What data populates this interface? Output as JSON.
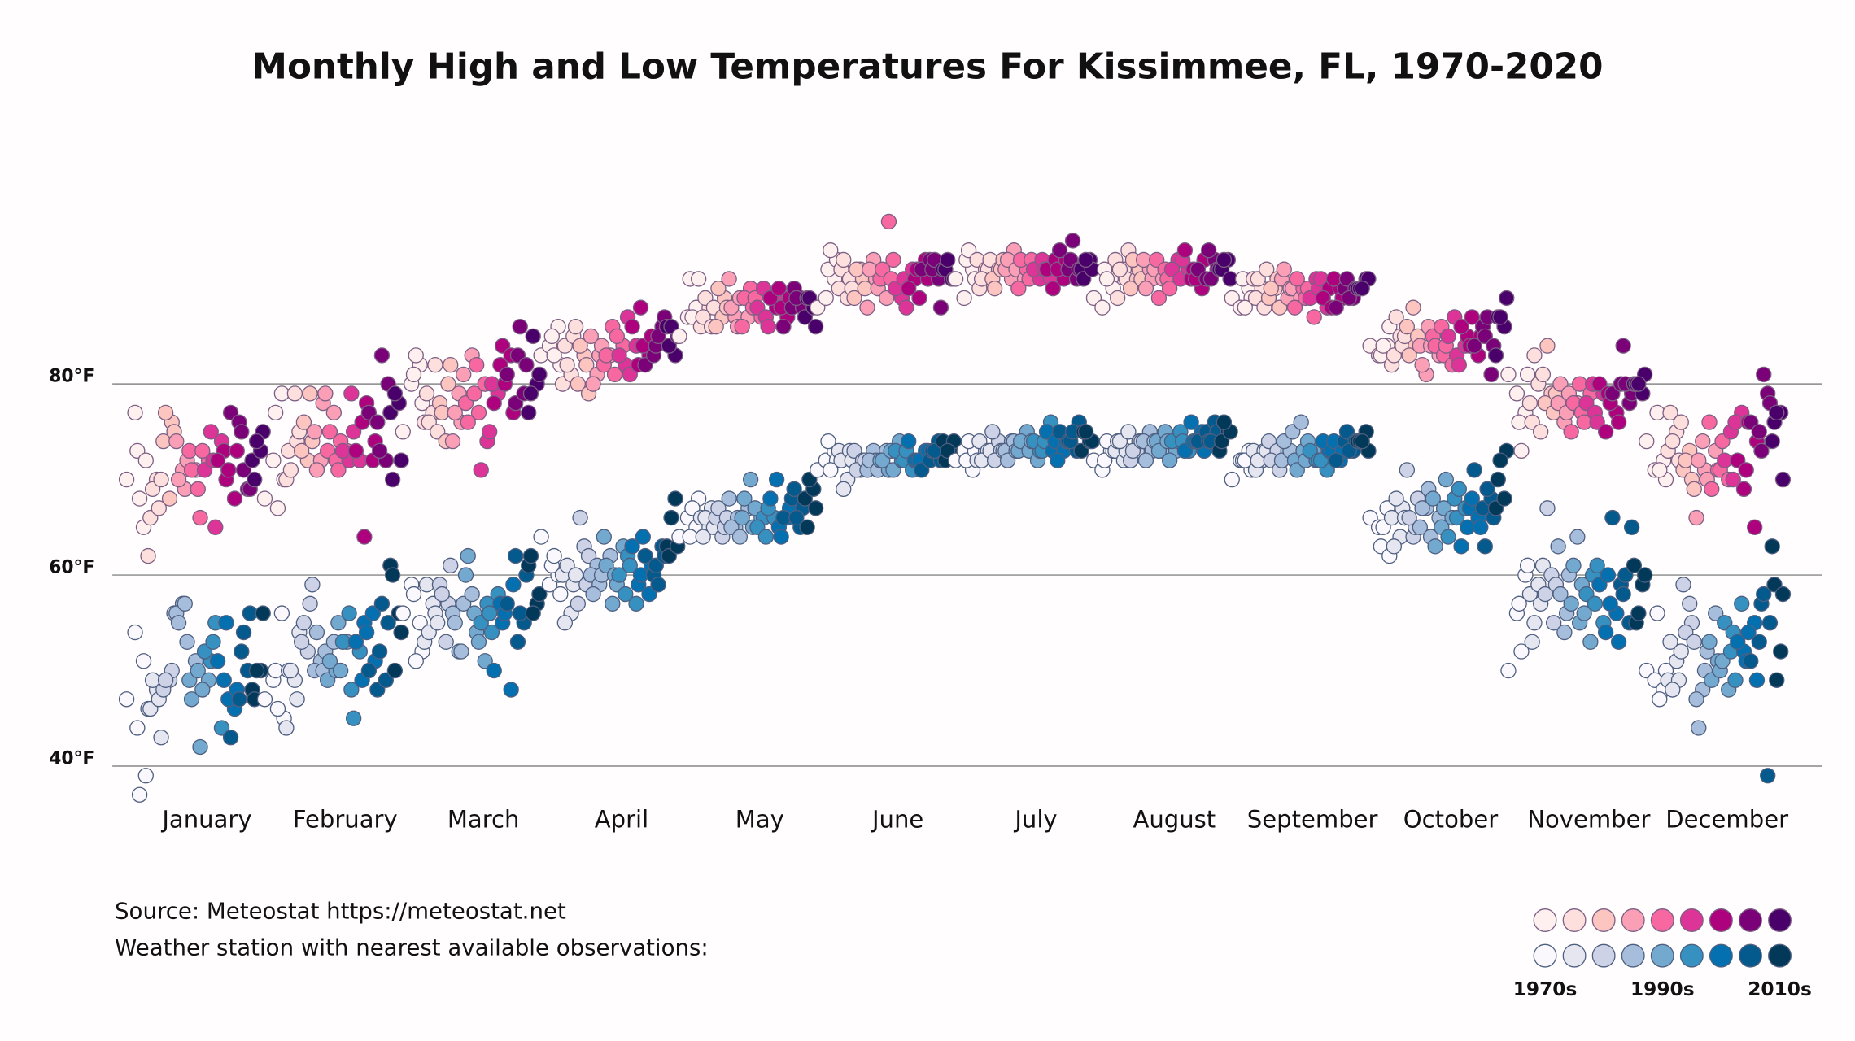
{
  "chart_data": {
    "type": "scatter",
    "title": "Monthly High and Low Temperatures For Kissimmee, FL, 1970-2020",
    "notes": [
      "Source: Meteostat https://meteostat.net",
      "Weather station with nearest available observations:"
    ],
    "categories": [
      "January",
      "February",
      "March",
      "April",
      "May",
      "June",
      "July",
      "August",
      "September",
      "October",
      "November",
      "December"
    ],
    "ylim": [
      36,
      100
    ],
    "yticks": [
      {
        "value": 40,
        "label": "40°F"
      },
      {
        "value": 60,
        "label": "60°F"
      },
      {
        "value": 80,
        "label": "80°F"
      }
    ],
    "grid": true,
    "legend": {
      "labels": [
        "1970s",
        "1990s",
        "2010s"
      ],
      "label_positions": [
        0,
        4,
        8
      ],
      "high_colors": [
        "#fff0f0",
        "#fde0dd",
        "#fcc5c0",
        "#fa9fb5",
        "#f768a1",
        "#dd3497",
        "#ae017e",
        "#7a0177",
        "#49006a"
      ],
      "low_colors": [
        "#fbf8fd",
        "#e6e6f1",
        "#cdd2e6",
        "#a6bddb",
        "#74a9cf",
        "#3690c0",
        "#0570b0",
        "#045a8d",
        "#023858"
      ]
    },
    "high": [
      [
        70,
        77,
        65,
        73,
        72,
        68,
        62,
        70,
        66,
        67,
        69,
        70,
        68,
        74,
        76,
        77,
        75,
        71,
        74,
        69,
        70,
        72,
        71,
        73,
        69,
        71,
        66,
        72,
        73,
        75,
        71,
        72,
        74,
        65,
        73,
        72,
        70,
        68,
        71,
        73,
        77,
        76,
        69,
        75,
        69,
        71,
        72,
        73,
        70,
        75,
        74
      ],
      [
        68,
        72,
        79,
        77,
        70,
        67,
        70,
        79,
        73,
        74,
        71,
        75,
        72,
        73,
        79,
        76,
        74,
        72,
        75,
        78,
        71,
        79,
        77,
        73,
        72,
        75,
        71,
        73,
        74,
        72,
        73,
        79,
        72,
        75,
        76,
        73,
        64,
        72,
        78,
        74,
        77,
        76,
        72,
        73,
        80,
        83,
        77,
        78,
        70,
        72,
        79
      ],
      [
        75,
        80,
        82,
        81,
        78,
        83,
        76,
        77,
        79,
        82,
        76,
        75,
        74,
        78,
        80,
        77,
        82,
        79,
        74,
        76,
        77,
        81,
        83,
        78,
        79,
        76,
        82,
        80,
        77,
        74,
        71,
        75,
        79,
        80,
        82,
        78,
        84,
        83,
        80,
        77,
        81,
        78,
        79,
        83,
        82,
        86,
        77,
        80,
        79,
        81,
        85
      ],
      [
        83,
        84,
        86,
        85,
        82,
        83,
        80,
        81,
        84,
        85,
        82,
        86,
        83,
        80,
        82,
        84,
        79,
        81,
        85,
        83,
        80,
        84,
        83,
        82,
        86,
        83,
        81,
        84,
        85,
        82,
        83,
        87,
        84,
        81,
        82,
        86,
        88,
        83,
        84,
        85,
        82,
        83,
        86,
        84,
        87,
        85,
        86,
        83,
        84,
        85,
        86
      ],
      [
        85,
        87,
        88,
        91,
        91,
        87,
        86,
        88,
        87,
        86,
        89,
        88,
        87,
        86,
        89,
        90,
        88,
        87,
        91,
        86,
        88,
        89,
        87,
        86,
        90,
        89,
        88,
        87,
        89,
        90,
        88,
        87,
        89,
        86,
        88,
        89,
        90,
        87,
        88,
        89,
        86,
        88,
        89,
        90,
        88,
        89,
        87,
        88,
        89,
        86,
        89
      ],
      [
        88,
        89,
        91,
        92,
        93,
        94,
        90,
        89,
        92,
        91,
        93,
        90,
        92,
        89,
        91,
        92,
        90,
        93,
        88,
        91,
        92,
        90,
        89,
        91,
        97,
        92,
        91,
        90,
        93,
        89,
        90,
        91,
        92,
        88,
        91,
        90,
        92,
        93,
        89,
        91,
        92,
        93,
        91,
        92,
        88,
        93,
        92,
        91,
        92,
        91,
        93
      ],
      [
        91,
        89,
        92,
        93,
        91,
        94,
        93,
        92,
        90,
        92,
        91,
        93,
        92,
        91,
        92,
        90,
        93,
        91,
        92,
        94,
        93,
        92,
        91,
        90,
        92,
        93,
        91,
        92,
        93,
        91,
        92,
        93,
        91,
        92,
        90,
        92,
        93,
        91,
        92,
        93,
        94,
        92,
        91,
        93,
        92,
        95,
        92,
        93,
        91,
        92,
        93
      ],
      [
        89,
        88,
        91,
        92,
        90,
        91,
        93,
        92,
        89,
        91,
        92,
        94,
        91,
        90,
        92,
        93,
        91,
        92,
        93,
        91,
        90,
        92,
        91,
        93,
        92,
        89,
        91,
        92,
        90,
        93,
        92,
        91,
        92,
        93,
        91,
        94,
        92,
        90,
        91,
        93,
        92,
        91,
        93,
        94,
        92,
        91,
        92,
        93,
        92,
        91,
        93
      ],
      [
        89,
        88,
        90,
        91,
        89,
        88,
        91,
        90,
        89,
        88,
        91,
        92,
        90,
        89,
        91,
        90,
        88,
        89,
        91,
        90,
        92,
        90,
        89,
        88,
        90,
        91,
        89,
        87,
        90,
        91,
        89,
        90,
        88,
        91,
        90,
        89,
        88,
        90,
        91,
        89,
        88,
        90,
        89,
        91,
        90,
        89,
        90,
        91,
        90,
        91,
        90
      ],
      [
        84,
        83,
        84,
        83,
        86,
        84,
        82,
        85,
        83,
        84,
        87,
        85,
        88,
        86,
        84,
        83,
        85,
        81,
        84,
        86,
        82,
        84,
        83,
        85,
        86,
        84,
        83,
        82,
        84,
        87,
        85,
        83,
        84,
        82,
        85,
        86,
        84,
        83,
        87,
        85,
        84,
        86,
        81,
        85,
        84,
        87,
        83,
        86,
        87,
        89,
        87
      ],
      [
        81,
        79,
        77,
        76,
        81,
        73,
        78,
        80,
        76,
        75,
        83,
        81,
        79,
        78,
        77,
        84,
        79,
        76,
        78,
        77,
        80,
        79,
        78,
        75,
        80,
        78,
        77,
        79,
        76,
        80,
        78,
        77,
        79,
        76,
        75,
        80,
        79,
        77,
        78,
        76,
        79,
        80,
        78,
        84,
        79,
        80,
        80,
        79,
        80,
        81,
        80
      ],
      [
        74,
        71,
        72,
        77,
        70,
        71,
        73,
        75,
        77,
        72,
        74,
        76,
        73,
        71,
        70,
        72,
        69,
        74,
        66,
        71,
        72,
        70,
        73,
        76,
        71,
        69,
        71,
        70,
        74,
        75,
        72,
        70,
        77,
        76,
        69,
        72,
        71,
        65,
        76,
        74,
        76,
        75,
        79,
        73,
        78,
        81,
        74,
        77,
        76,
        70,
        77
      ]
    ],
    "low": [
      [
        47,
        54,
        51,
        44,
        39,
        37,
        46,
        48,
        46,
        47,
        49,
        43,
        49,
        48,
        50,
        49,
        56,
        57,
        56,
        57,
        55,
        53,
        51,
        49,
        50,
        47,
        42,
        49,
        48,
        51,
        52,
        53,
        44,
        55,
        49,
        51,
        55,
        46,
        47,
        48,
        43,
        47,
        50,
        52,
        56,
        54,
        48,
        50,
        47,
        56,
        50
      ],
      [
        47,
        49,
        56,
        50,
        45,
        46,
        44,
        49,
        50,
        47,
        50,
        54,
        52,
        53,
        57,
        55,
        59,
        51,
        50,
        50,
        54,
        52,
        53,
        49,
        50,
        51,
        55,
        53,
        50,
        56,
        53,
        48,
        52,
        45,
        49,
        53,
        55,
        56,
        54,
        51,
        50,
        48,
        49,
        52,
        55,
        57,
        61,
        56,
        60,
        54,
        50
      ],
      [
        56,
        59,
        55,
        58,
        52,
        51,
        53,
        57,
        59,
        56,
        54,
        55,
        53,
        59,
        57,
        58,
        61,
        52,
        56,
        52,
        55,
        57,
        58,
        60,
        56,
        62,
        54,
        51,
        53,
        57,
        55,
        56,
        58,
        54,
        57,
        50,
        55,
        48,
        56,
        59,
        57,
        62,
        55,
        53,
        60,
        56,
        61,
        57,
        62,
        58,
        56
      ],
      [
        64,
        59,
        60,
        61,
        58,
        62,
        60,
        56,
        55,
        59,
        61,
        60,
        63,
        57,
        59,
        66,
        62,
        61,
        60,
        59,
        58,
        60,
        62,
        64,
        57,
        61,
        60,
        63,
        59,
        58,
        60,
        62,
        57,
        61,
        59,
        63,
        60,
        58,
        64,
        61,
        62,
        60,
        63,
        61,
        62,
        59,
        63,
        68,
        62,
        63,
        66
      ],
      [
        64,
        66,
        65,
        64,
        68,
        67,
        66,
        65,
        64,
        67,
        66,
        65,
        64,
        66,
        65,
        67,
        66,
        65,
        68,
        66,
        65,
        64,
        67,
        66,
        70,
        68,
        65,
        66,
        67,
        66,
        65,
        64,
        66,
        67,
        70,
        68,
        65,
        66,
        64,
        67,
        66,
        68,
        65,
        69,
        67,
        66,
        68,
        69,
        65,
        67,
        70
      ],
      [
        71,
        72,
        73,
        74,
        72,
        71,
        73,
        70,
        72,
        73,
        69,
        72,
        71,
        73,
        72,
        71,
        72,
        73,
        71,
        72,
        72,
        71,
        73,
        72,
        71,
        72,
        73,
        74,
        71,
        72,
        73,
        72,
        71,
        73,
        72,
        74,
        72,
        73,
        72,
        73,
        71,
        72,
        74,
        73,
        72,
        73,
        74,
        73,
        72,
        74,
        73
      ],
      [
        72,
        73,
        71,
        72,
        73,
        74,
        72,
        73,
        74,
        73,
        72,
        73,
        74,
        75,
        73,
        72,
        73,
        74,
        73,
        74,
        72,
        73,
        74,
        73,
        75,
        74,
        73,
        72,
        74,
        73,
        74,
        73,
        76,
        74,
        73,
        75,
        74,
        73,
        72,
        74,
        75,
        74,
        73,
        74,
        76,
        75,
        73,
        74,
        75,
        74,
        75
      ],
      [
        72,
        71,
        73,
        72,
        73,
        74,
        73,
        72,
        74,
        73,
        74,
        75,
        73,
        72,
        74,
        73,
        74,
        75,
        74,
        73,
        72,
        74,
        73,
        74,
        75,
        73,
        74,
        73,
        72,
        74,
        74,
        75,
        73,
        74,
        76,
        73,
        74,
        75,
        74,
        73,
        74,
        75,
        76,
        74,
        75,
        74,
        73,
        75,
        74,
        75,
        76
      ],
      [
        70,
        72,
        73,
        72,
        71,
        72,
        73,
        72,
        71,
        73,
        72,
        73,
        72,
        74,
        73,
        72,
        71,
        73,
        72,
        73,
        74,
        75,
        76,
        72,
        73,
        71,
        72,
        73,
        74,
        72,
        73,
        72,
        71,
        72,
        73,
        74,
        73,
        72,
        74,
        73,
        72,
        74,
        73,
        75,
        74,
        73,
        74,
        75,
        74,
        73,
        74
      ],
      [
        66,
        65,
        67,
        63,
        62,
        65,
        66,
        64,
        63,
        67,
        68,
        66,
        64,
        71,
        65,
        66,
        68,
        67,
        65,
        69,
        67,
        64,
        66,
        68,
        65,
        63,
        67,
        66,
        70,
        68,
        64,
        66,
        67,
        69,
        65,
        63,
        67,
        66,
        68,
        65,
        71,
        67,
        68,
        63,
        66,
        69,
        67,
        68,
        70,
        73,
        72
      ],
      [
        50,
        56,
        60,
        57,
        61,
        52,
        58,
        59,
        53,
        57,
        55,
        61,
        60,
        58,
        55,
        67,
        59,
        54,
        63,
        56,
        58,
        60,
        64,
        57,
        55,
        61,
        59,
        53,
        56,
        60,
        58,
        57,
        55,
        61,
        54,
        59,
        60,
        56,
        57,
        53,
        66,
        59,
        55,
        58,
        65,
        60,
        61,
        59,
        55,
        60,
        56
      ],
      [
        50,
        49,
        48,
        56,
        50,
        47,
        49,
        51,
        53,
        49,
        48,
        52,
        57,
        59,
        55,
        54,
        53,
        48,
        47,
        50,
        44,
        52,
        56,
        53,
        51,
        49,
        50,
        48,
        51,
        52,
        55,
        54,
        57,
        49,
        52,
        53,
        51,
        55,
        54,
        49,
        51,
        53,
        39,
        57,
        55,
        58,
        63,
        52,
        59,
        58,
        49
      ]
    ]
  }
}
